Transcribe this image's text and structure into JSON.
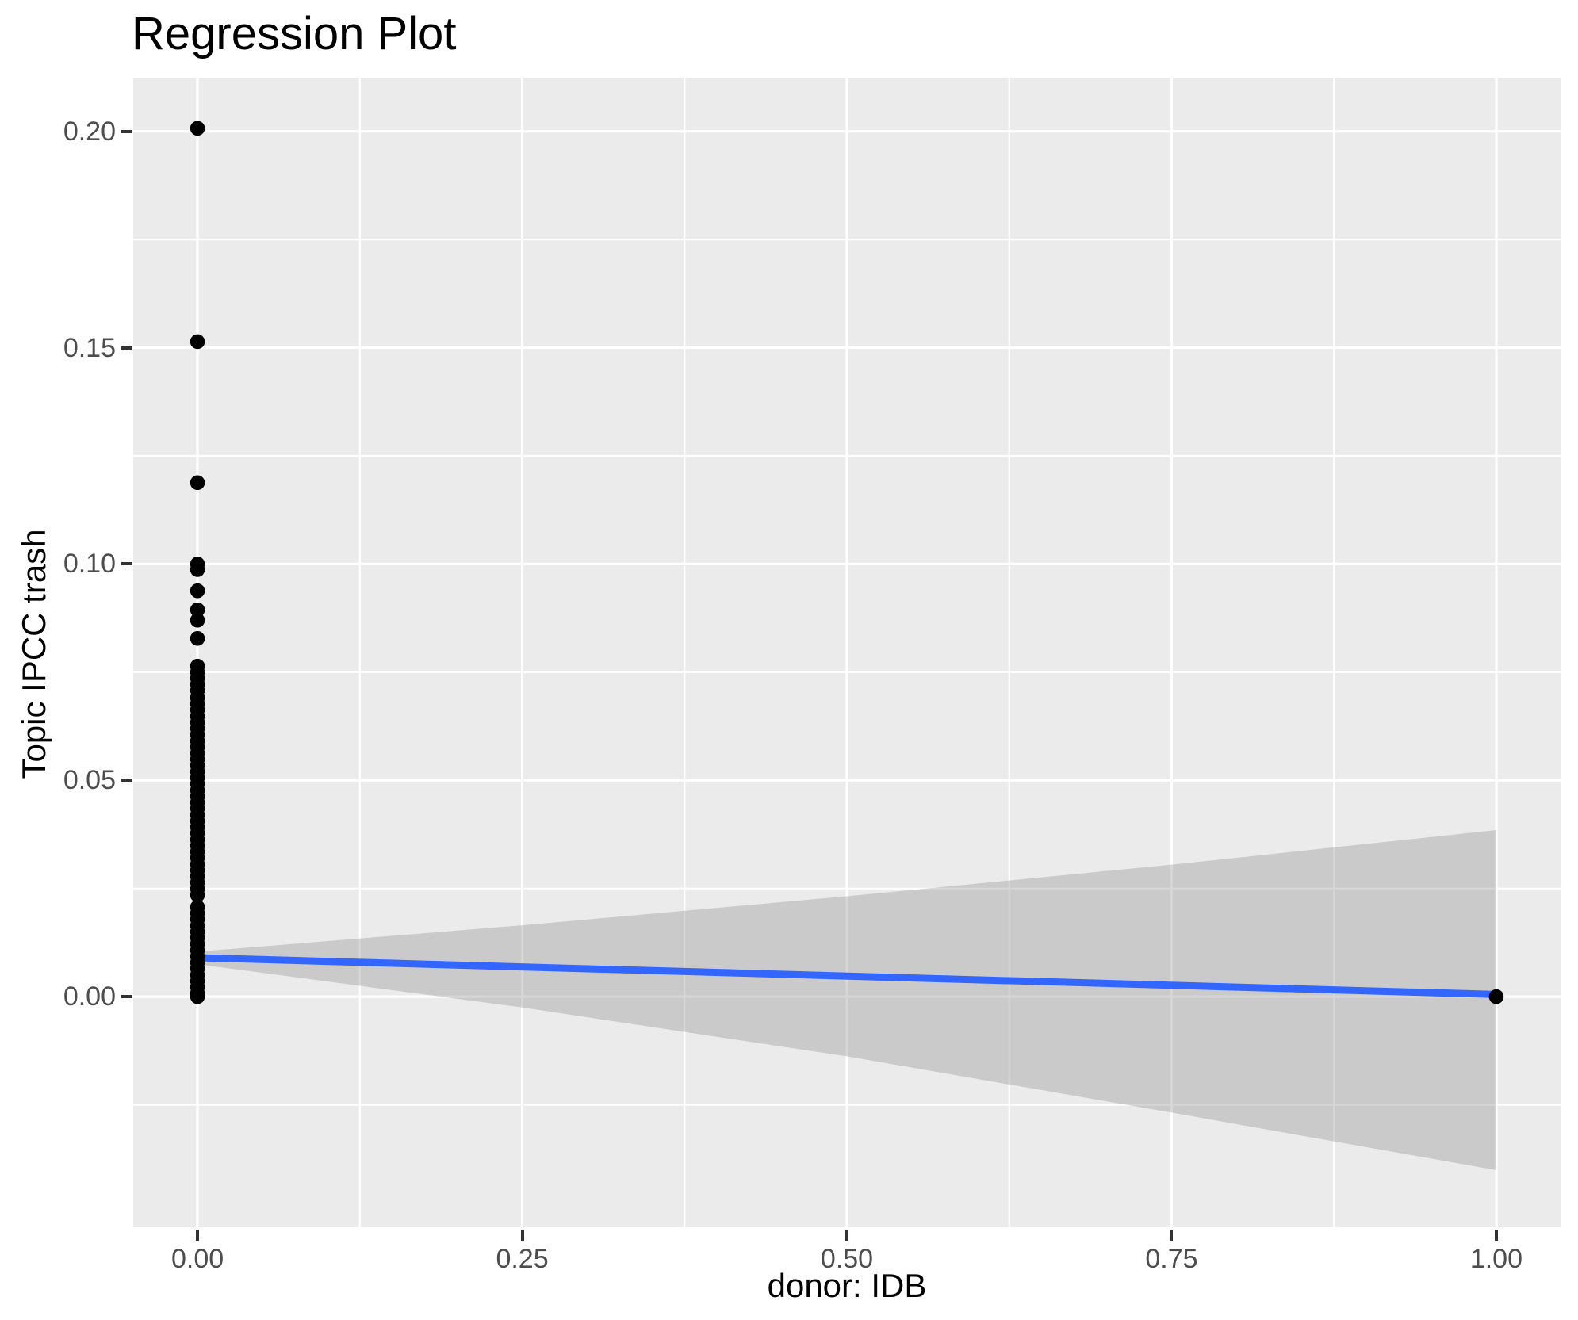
{
  "chart_data": {
    "type": "scatter",
    "title": "Regression Plot",
    "xlabel": "donor: IDB",
    "ylabel": "Topic IPCC trash",
    "x_domain": [
      -0.0495,
      1.0495
    ],
    "y_domain": [
      -0.0533,
      0.2124
    ],
    "x_ticks": [
      {
        "value": 0.0,
        "label": "0.00"
      },
      {
        "value": 0.25,
        "label": "0.25"
      },
      {
        "value": 0.5,
        "label": "0.50"
      },
      {
        "value": 0.75,
        "label": "0.75"
      },
      {
        "value": 1.0,
        "label": "1.00"
      }
    ],
    "y_ticks": [
      {
        "value": 0.0,
        "label": "0.00"
      },
      {
        "value": 0.05,
        "label": "0.05"
      },
      {
        "value": 0.1,
        "label": "0.10"
      },
      {
        "value": 0.15,
        "label": "0.15"
      },
      {
        "value": 0.2,
        "label": "0.20"
      }
    ],
    "x_minor_gridlines": [
      0.125,
      0.375,
      0.625,
      0.875
    ],
    "y_minor_gridlines": [
      -0.025,
      0.025,
      0.075,
      0.125,
      0.175
    ],
    "grid": true,
    "legend": "none",
    "regression_line": {
      "x": [
        0,
        1
      ],
      "y": [
        0.009,
        0.0005
      ]
    },
    "confidence_band": {
      "x": [
        0.0,
        0.25,
        0.5,
        0.75,
        1.0
      ],
      "upper": [
        0.0104,
        0.0165,
        0.0232,
        0.0305,
        0.0385
      ],
      "lower": [
        0.0075,
        -0.0025,
        -0.0138,
        -0.0268,
        -0.0401
      ]
    },
    "points": [
      [
        0,
        0.2007
      ],
      [
        0,
        0.1514
      ],
      [
        0,
        0.1188
      ],
      [
        0,
        0.1
      ],
      [
        0,
        0.0987
      ],
      [
        0,
        0.0938
      ],
      [
        0,
        0.0894
      ],
      [
        0,
        0.087
      ],
      [
        0,
        0.0828
      ],
      [
        0,
        0.0764
      ],
      [
        0,
        0.075
      ],
      [
        0,
        0.0736
      ],
      [
        0,
        0.0722
      ],
      [
        0,
        0.0708
      ],
      [
        0,
        0.0691
      ],
      [
        0,
        0.0677
      ],
      [
        0,
        0.0663
      ],
      [
        0,
        0.0648
      ],
      [
        0,
        0.0634
      ],
      [
        0,
        0.062
      ],
      [
        0,
        0.0606
      ],
      [
        0,
        0.0591
      ],
      [
        0,
        0.0577
      ],
      [
        0,
        0.0563
      ],
      [
        0,
        0.0549
      ],
      [
        0,
        0.0534
      ],
      [
        0,
        0.052
      ],
      [
        0,
        0.0506
      ],
      [
        0,
        0.0492
      ],
      [
        0,
        0.0477
      ],
      [
        0,
        0.0463
      ],
      [
        0,
        0.0449
      ],
      [
        0,
        0.0435
      ],
      [
        0,
        0.042
      ],
      [
        0,
        0.0406
      ],
      [
        0,
        0.0392
      ],
      [
        0,
        0.0378
      ],
      [
        0,
        0.0363
      ],
      [
        0,
        0.0349
      ],
      [
        0,
        0.0335
      ],
      [
        0,
        0.0321
      ],
      [
        0,
        0.0306
      ],
      [
        0,
        0.0292
      ],
      [
        0,
        0.0278
      ],
      [
        0,
        0.0264
      ],
      [
        0,
        0.0249
      ],
      [
        0,
        0.0235
      ],
      [
        0,
        0.0207
      ],
      [
        0,
        0.0193
      ],
      [
        0,
        0.0179
      ],
      [
        0,
        0.0164
      ],
      [
        0,
        0.015
      ],
      [
        0,
        0.0136
      ],
      [
        0,
        0.0122
      ],
      [
        0,
        0.0107
      ],
      [
        0,
        0.0093
      ],
      [
        0,
        0.0079
      ],
      [
        0,
        0.0065
      ],
      [
        0,
        0.005
      ],
      [
        0,
        0.0036
      ],
      [
        0,
        0.0022
      ],
      [
        0,
        0.0008
      ],
      [
        0,
        0.0
      ],
      [
        1,
        0.0
      ]
    ],
    "style": {
      "point_radius": 9.3,
      "line_width": 9,
      "major_grid_width": 3.2,
      "minor_grid_width": 2.2
    },
    "colors": {
      "panel_background": "#EBEBEB",
      "gridline": "#FFFFFF",
      "confidence_band": "rgba(153,153,153,0.40)",
      "regression_line": "#3366FF",
      "point": "#000000",
      "axis_text": "#4D4D4D",
      "tick_mark": "#333333",
      "title_text": "#000000"
    }
  }
}
